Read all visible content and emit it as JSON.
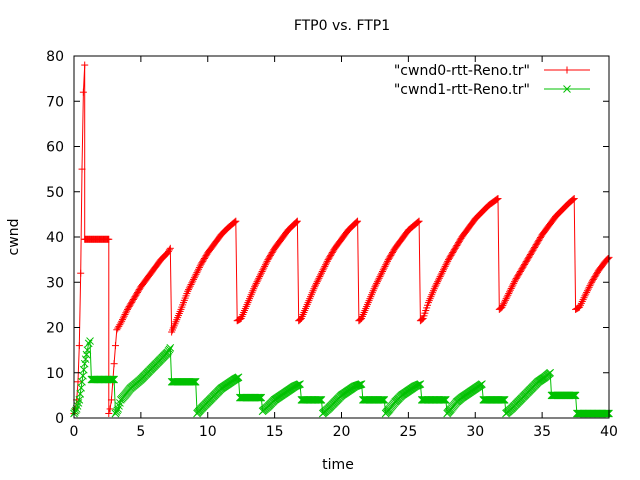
{
  "chart_data": {
    "type": "line",
    "title": "FTP0 vs. FTP1",
    "xlabel": "time",
    "ylabel": "cwnd",
    "xlim": [
      0,
      40
    ],
    "ylim": [
      0,
      80
    ],
    "xticks": [
      0,
      5,
      10,
      15,
      20,
      25,
      30,
      35,
      40
    ],
    "yticks": [
      0,
      10,
      20,
      30,
      40,
      50,
      60,
      70,
      80
    ],
    "grid": false,
    "legend_position": "top-right",
    "series": [
      {
        "name": "\"cwnd0-rtt-Reno.tr\"",
        "color": "#ff0000",
        "marker": "plus",
        "points": [
          [
            0.0,
            1
          ],
          [
            0.1,
            2
          ],
          [
            0.2,
            4
          ],
          [
            0.3,
            8
          ],
          [
            0.4,
            16
          ],
          [
            0.5,
            32
          ],
          [
            0.6,
            55
          ],
          [
            0.7,
            72
          ],
          [
            0.8,
            78
          ],
          [
            0.8,
            39.5
          ],
          [
            2.6,
            39.5
          ],
          [
            2.6,
            1
          ],
          [
            2.7,
            2
          ],
          [
            2.8,
            4
          ],
          [
            2.9,
            8
          ],
          [
            3.0,
            12
          ],
          [
            3.1,
            16
          ],
          [
            3.2,
            19.5
          ],
          [
            3.5,
            21
          ],
          [
            4.0,
            24
          ],
          [
            4.5,
            26.5
          ],
          [
            5.0,
            29
          ],
          [
            5.5,
            31
          ],
          [
            6.0,
            33
          ],
          [
            6.5,
            35
          ],
          [
            7.0,
            36.5
          ],
          [
            7.2,
            37.5
          ],
          [
            7.3,
            19
          ],
          [
            8.0,
            24
          ],
          [
            8.5,
            28
          ],
          [
            9.0,
            31
          ],
          [
            9.5,
            34
          ],
          [
            10.0,
            36.5
          ],
          [
            10.5,
            38.5
          ],
          [
            11.0,
            40.5
          ],
          [
            11.5,
            42
          ],
          [
            12.1,
            43.5
          ],
          [
            12.2,
            21.5
          ],
          [
            12.5,
            22
          ],
          [
            13.0,
            25.5
          ],
          [
            13.5,
            29
          ],
          [
            14.0,
            32
          ],
          [
            14.5,
            35
          ],
          [
            15.0,
            37.5
          ],
          [
            15.5,
            39.5
          ],
          [
            16.0,
            41.5
          ],
          [
            16.7,
            43.5
          ],
          [
            16.8,
            21.5
          ],
          [
            17.0,
            22
          ],
          [
            17.5,
            25.5
          ],
          [
            18.0,
            29
          ],
          [
            18.5,
            32
          ],
          [
            19.0,
            35
          ],
          [
            19.5,
            37.5
          ],
          [
            20.0,
            39.5
          ],
          [
            20.5,
            41.5
          ],
          [
            21.2,
            43.5
          ],
          [
            21.3,
            21.5
          ],
          [
            21.5,
            22
          ],
          [
            22.0,
            25.5
          ],
          [
            22.5,
            29
          ],
          [
            23.0,
            32
          ],
          [
            23.5,
            35
          ],
          [
            24.0,
            37.5
          ],
          [
            24.5,
            39.5
          ],
          [
            25.0,
            41.5
          ],
          [
            25.8,
            43.5
          ],
          [
            25.9,
            21.5
          ],
          [
            26.1,
            22
          ],
          [
            26.5,
            25.5
          ],
          [
            27.0,
            29
          ],
          [
            27.5,
            32
          ],
          [
            28.0,
            35
          ],
          [
            28.5,
            37.5
          ],
          [
            29.0,
            40
          ],
          [
            29.5,
            42
          ],
          [
            30.0,
            44
          ],
          [
            30.5,
            45.5
          ],
          [
            31.0,
            47
          ],
          [
            31.7,
            48.5
          ],
          [
            31.8,
            24
          ],
          [
            32.0,
            24.5
          ],
          [
            32.5,
            27.5
          ],
          [
            33.0,
            30.5
          ],
          [
            33.5,
            33
          ],
          [
            34.0,
            35.5
          ],
          [
            34.5,
            38
          ],
          [
            35.0,
            40.5
          ],
          [
            35.5,
            42.5
          ],
          [
            36.0,
            44.5
          ],
          [
            36.5,
            46
          ],
          [
            37.0,
            47.5
          ],
          [
            37.4,
            48.5
          ],
          [
            37.5,
            24
          ],
          [
            37.8,
            24.5
          ],
          [
            38.2,
            27
          ],
          [
            38.7,
            30
          ],
          [
            39.2,
            32.5
          ],
          [
            39.7,
            34.5
          ],
          [
            40.0,
            35.5
          ]
        ]
      },
      {
        "name": "\"cwnd1-rtt-Reno.tr\"",
        "color": "#00c000",
        "marker": "cross",
        "points": [
          [
            0.0,
            1
          ],
          [
            0.2,
            2
          ],
          [
            0.4,
            4
          ],
          [
            0.6,
            8
          ],
          [
            0.8,
            12
          ],
          [
            1.0,
            15
          ],
          [
            1.1,
            16.5
          ],
          [
            1.2,
            17
          ],
          [
            1.3,
            8.5
          ],
          [
            3.0,
            8.5
          ],
          [
            3.1,
            1
          ],
          [
            3.3,
            2
          ],
          [
            3.5,
            4
          ],
          [
            3.8,
            5
          ],
          [
            4.2,
            6.5
          ],
          [
            4.6,
            7.5
          ],
          [
            5.0,
            8.5
          ],
          [
            5.5,
            10
          ],
          [
            6.0,
            11.5
          ],
          [
            6.5,
            13
          ],
          [
            7.0,
            14.5
          ],
          [
            7.2,
            15.5
          ],
          [
            7.3,
            8
          ],
          [
            9.1,
            8
          ],
          [
            9.2,
            1
          ],
          [
            9.5,
            2
          ],
          [
            10.0,
            3.5
          ],
          [
            10.5,
            5
          ],
          [
            11.0,
            6.5
          ],
          [
            11.5,
            7.5
          ],
          [
            12.0,
            8.5
          ],
          [
            12.3,
            9
          ],
          [
            12.4,
            4.5
          ],
          [
            14.0,
            4.5
          ],
          [
            14.1,
            1.5
          ],
          [
            14.5,
            2.5
          ],
          [
            15.0,
            4
          ],
          [
            15.5,
            5
          ],
          [
            16.0,
            6
          ],
          [
            16.5,
            7
          ],
          [
            16.9,
            7.5
          ],
          [
            17.0,
            4
          ],
          [
            18.5,
            4
          ],
          [
            18.6,
            1
          ],
          [
            19.0,
            2
          ],
          [
            19.5,
            3.5
          ],
          [
            20.0,
            5
          ],
          [
            20.5,
            6
          ],
          [
            21.0,
            7
          ],
          [
            21.5,
            7.5
          ],
          [
            21.6,
            4
          ],
          [
            23.2,
            4
          ],
          [
            23.3,
            1
          ],
          [
            23.6,
            2
          ],
          [
            24.0,
            3.5
          ],
          [
            24.5,
            5
          ],
          [
            25.0,
            6
          ],
          [
            25.5,
            7
          ],
          [
            25.9,
            7.5
          ],
          [
            26.0,
            4
          ],
          [
            27.8,
            4
          ],
          [
            27.9,
            1
          ],
          [
            28.2,
            2
          ],
          [
            28.6,
            3.5
          ],
          [
            29.0,
            4.5
          ],
          [
            29.5,
            5.5
          ],
          [
            30.0,
            6.5
          ],
          [
            30.5,
            7.5
          ],
          [
            30.6,
            4
          ],
          [
            32.2,
            4
          ],
          [
            32.3,
            1
          ],
          [
            32.7,
            2
          ],
          [
            33.2,
            3.5
          ],
          [
            33.7,
            5
          ],
          [
            34.2,
            6.5
          ],
          [
            34.7,
            8
          ],
          [
            35.2,
            9
          ],
          [
            35.6,
            10
          ],
          [
            35.7,
            5
          ],
          [
            37.5,
            5
          ],
          [
            37.6,
            1
          ],
          [
            40.0,
            1
          ]
        ]
      }
    ]
  }
}
